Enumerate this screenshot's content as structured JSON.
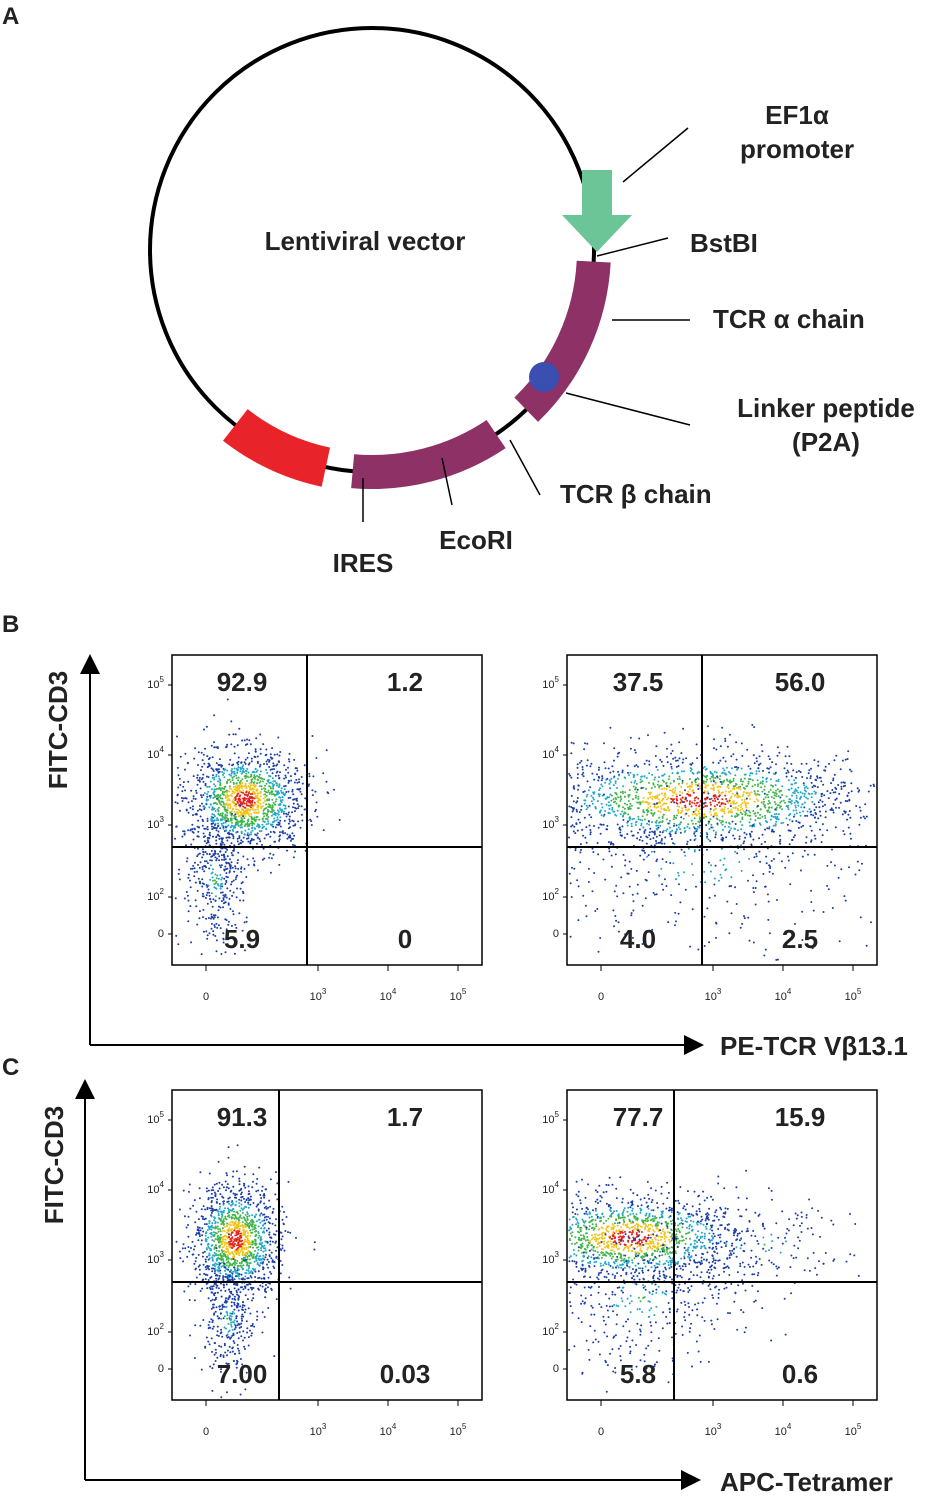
{
  "panel_a": {
    "letter": "A",
    "center_label": "Lentiviral vector",
    "ef1a_promoter": [
      "EF1α",
      "promoter"
    ],
    "bstbi": "BstBI",
    "tcr_alpha": "TCR α chain",
    "linker": [
      "Linker peptide",
      "(P2A)"
    ],
    "tcr_beta": "TCR β chain",
    "ecori": "EcoRI",
    "ires": "IRES"
  },
  "panel_b": {
    "letter": "B",
    "y_axis": "FITC-CD3",
    "x_axis": "PE-TCR Vβ13.1",
    "plots": [
      {
        "quadrants": [
          "92.9",
          "1.2",
          "5.9",
          "0"
        ]
      },
      {
        "quadrants": [
          "37.5",
          "56.0",
          "4.0",
          "2.5"
        ]
      }
    ]
  },
  "panel_c": {
    "letter": "C",
    "y_axis": "FITC-CD3",
    "x_axis": "APC-Tetramer",
    "plots": [
      {
        "quadrants": [
          "91.3",
          "1.7",
          "7.00",
          "0.03"
        ]
      },
      {
        "quadrants": [
          "77.7",
          "15.9",
          "5.8",
          "0.6"
        ]
      }
    ]
  },
  "ticks": {
    "y": [
      {
        "base": "10",
        "sup": "5"
      },
      {
        "base": "10",
        "sup": "4"
      },
      {
        "base": "10",
        "sup": "3"
      },
      {
        "base": "10",
        "sup": "2"
      },
      {
        "base": "0"
      }
    ],
    "x": [
      {
        "base": "0"
      },
      {
        "base": "10",
        "sup": "3"
      },
      {
        "base": "10",
        "sup": "4"
      },
      {
        "base": "10",
        "sup": "5"
      }
    ]
  }
}
